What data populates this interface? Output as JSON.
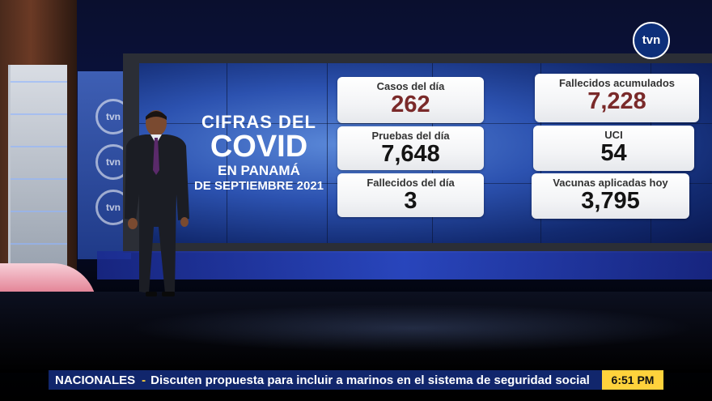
{
  "channel": {
    "logo_text": "tvn"
  },
  "screen": {
    "headline": {
      "line1": "CIFRAS DEL",
      "line2": "COVID",
      "line3": "EN PANAMÁ",
      "line4": "DE SEPTIEMBRE 2021"
    },
    "side_logos": [
      "tvn",
      "tvn",
      "tvn"
    ],
    "stats": [
      {
        "label": "Casos del día",
        "value": "262",
        "color": "#7a2a2a"
      },
      {
        "label": "Pruebas del día",
        "value": "7,648",
        "color": "#141414"
      },
      {
        "label": "Fallecidos del día",
        "value": "3",
        "color": "#141414"
      },
      {
        "label": "Fallecidos acumulados",
        "value": "7,228",
        "color": "#7a2a2a"
      },
      {
        "label": "UCI",
        "value": "54",
        "color": "#141414"
      },
      {
        "label": "Vacunas aplicadas hoy",
        "value": "3,795",
        "color": "#141414"
      }
    ]
  },
  "lower_third": {
    "section": "NACIONALES",
    "separator": "-",
    "headline": "Discuten propuesta para incluir a marinos en el sistema de seguridad social",
    "time": "6:51 PM"
  },
  "colors": {
    "ticker_bg": "#11266c",
    "time_bg": "#ffd23c",
    "accent_red": "#7a2a2a"
  }
}
